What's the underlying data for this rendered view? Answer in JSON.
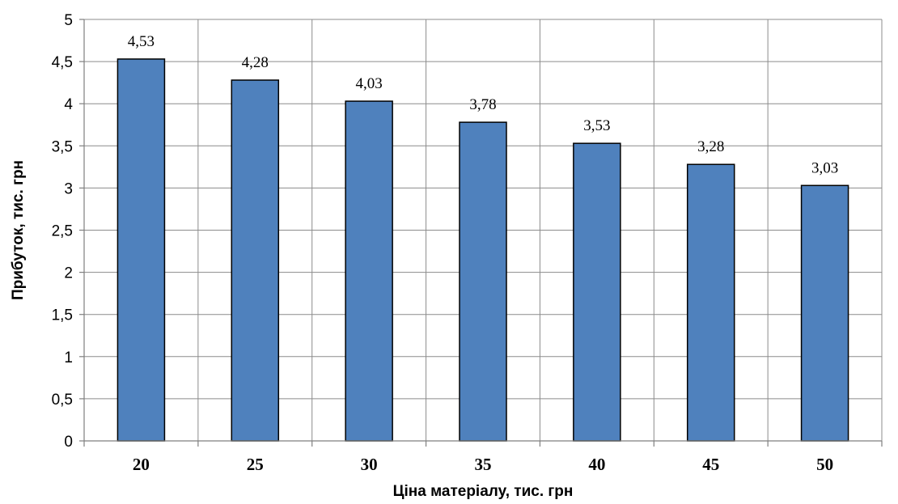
{
  "chart_data": {
    "type": "bar",
    "categories": [
      "20",
      "25",
      "30",
      "35",
      "40",
      "45",
      "50"
    ],
    "values": [
      4.53,
      4.28,
      4.03,
      3.78,
      3.53,
      3.28,
      3.03
    ],
    "data_labels": [
      "4,53",
      "4,28",
      "4,03",
      "3,78",
      "3,53",
      "3,28",
      "3,03"
    ],
    "y_ticks": [
      0,
      0.5,
      1,
      1.5,
      2,
      2.5,
      3,
      3.5,
      4,
      4.5,
      5
    ],
    "y_tick_labels": [
      "0",
      "0,5",
      "1",
      "1,5",
      "2",
      "2,5",
      "3",
      "3,5",
      "4",
      "4,5",
      "5"
    ],
    "xlabel": "Ціна матеріалу, тис. грн",
    "ylabel": "Прибуток, тис. грн",
    "ylim": [
      0,
      5
    ],
    "grid": true,
    "bar_color": "#4f81bd"
  }
}
